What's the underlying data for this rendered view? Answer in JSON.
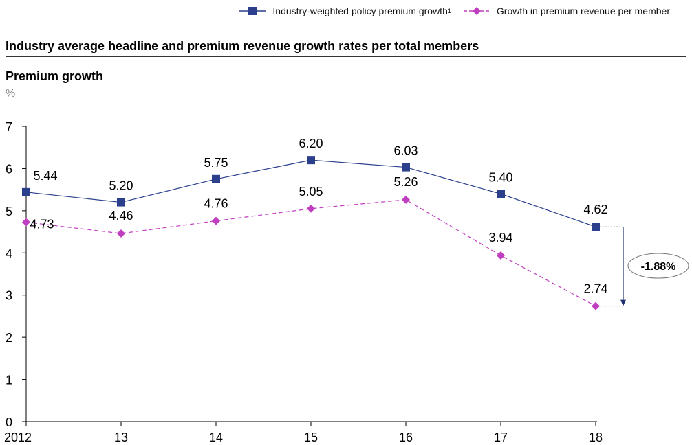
{
  "legend": {
    "series1": "Industry-weighted policy premium growth",
    "series1_sup": "1",
    "series2": "Growth in premium revenue per member"
  },
  "title": "Industry average headline and premium revenue growth rates per total members",
  "subtitle": "Premium growth",
  "unit": "%",
  "callout": {
    "label": "-1.88%"
  },
  "colors": {
    "series1": "#2b3f8c",
    "series2": "#c03ec0"
  },
  "chart_data": {
    "type": "line",
    "title": "Industry average headline and premium revenue growth rates per total members",
    "ylabel": "%",
    "xlabel": "",
    "categories": [
      "2012",
      "13",
      "14",
      "15",
      "16",
      "17",
      "18"
    ],
    "ylim": [
      0,
      7
    ],
    "yticks": [
      0,
      1,
      2,
      3,
      4,
      5,
      6,
      7
    ],
    "grid": false,
    "legend": "top-right",
    "series": [
      {
        "name": "Industry-weighted policy premium growth",
        "marker": "square",
        "style": "solid",
        "values": [
          5.44,
          5.2,
          5.75,
          6.2,
          6.03,
          5.4,
          4.62
        ],
        "labels": [
          "5.44",
          "5.20",
          "5.75",
          "6.20",
          "6.03",
          "5.40",
          "4.62"
        ]
      },
      {
        "name": "Growth in premium revenue per member",
        "marker": "diamond",
        "style": "dashed",
        "values": [
          4.73,
          4.46,
          4.76,
          5.05,
          5.26,
          3.94,
          2.74
        ],
        "labels": [
          "4.73",
          "4.46",
          "4.76",
          "5.05",
          "5.26",
          "3.94",
          "2.74"
        ]
      }
    ]
  }
}
